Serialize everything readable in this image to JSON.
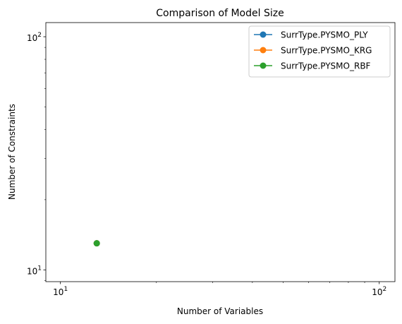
{
  "chart_data": {
    "type": "line",
    "title": "Comparison of Model Size",
    "xlabel": "Number of Variables",
    "ylabel": "Number of Constraints",
    "xscale": "log",
    "yscale": "log",
    "xlim": [
      9.0,
      112
    ],
    "ylim": [
      8.9,
      115
    ],
    "grid": false,
    "legend_position": "top-right",
    "x_ticks": [
      {
        "value": 10,
        "base": "10",
        "exp": "1"
      },
      {
        "value": 100,
        "base": "10",
        "exp": "2"
      }
    ],
    "y_ticks": [
      {
        "value": 10,
        "base": "10",
        "exp": "1"
      },
      {
        "value": 100,
        "base": "10",
        "exp": "2"
      }
    ],
    "series": [
      {
        "name": "SurrType.PYSMO_PLY",
        "color": "#1f77b4",
        "x": [
          13
        ],
        "y": [
          13
        ]
      },
      {
        "name": "SurrType.PYSMO_KRG",
        "color": "#ff7f0e",
        "x": [
          13
        ],
        "y": [
          13
        ]
      },
      {
        "name": "SurrType.PYSMO_RBF",
        "color": "#2ca02c",
        "x": [
          13
        ],
        "y": [
          13
        ]
      }
    ]
  }
}
